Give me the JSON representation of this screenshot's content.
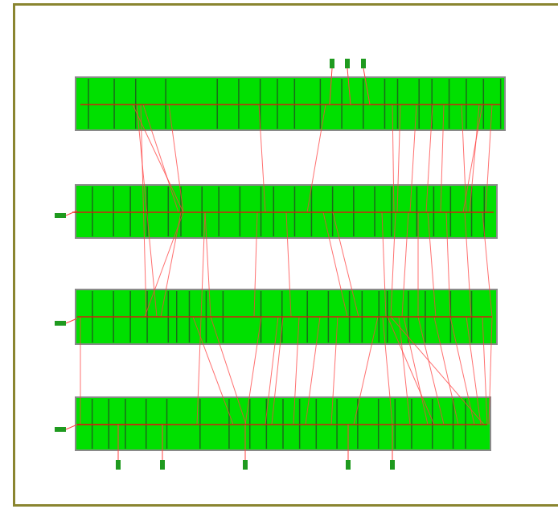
{
  "diagram": {
    "frame_color": "#8a8530",
    "bar_fill": "#00e000",
    "bar_divider": "#1a6b1a",
    "connector_color": "#ff4040",
    "trunk_color": "#d02010",
    "marker_color": "#1f9a1f",
    "bars": [
      {
        "id": "bar-1",
        "ticks": [
          0.03,
          0.09,
          0.14,
          0.21,
          0.33,
          0.38,
          0.43,
          0.47,
          0.51,
          0.57,
          0.62,
          0.67,
          0.72,
          0.75,
          0.8,
          0.83,
          0.87,
          0.91,
          0.95,
          0.99
        ]
      },
      {
        "id": "bar-2",
        "ticks": [
          0.04,
          0.09,
          0.13,
          0.17,
          0.22,
          0.25,
          0.3,
          0.34,
          0.39,
          0.44,
          0.47,
          0.52,
          0.56,
          0.61,
          0.66,
          0.71,
          0.75,
          0.81,
          0.85,
          0.89,
          0.94,
          0.97
        ]
      },
      {
        "id": "bar-3",
        "ticks": [
          0.04,
          0.09,
          0.13,
          0.17,
          0.22,
          0.24,
          0.27,
          0.31,
          0.35,
          0.44,
          0.49,
          0.55,
          0.6,
          0.65,
          0.68,
          0.72,
          0.74,
          0.79,
          0.83,
          0.89,
          0.94
        ]
      },
      {
        "id": "bar-4",
        "ticks": [
          0.04,
          0.08,
          0.12,
          0.17,
          0.22,
          0.3,
          0.37,
          0.42,
          0.46,
          0.5,
          0.54,
          0.58,
          0.63,
          0.68,
          0.73,
          0.77,
          0.81,
          0.86,
          0.91,
          0.94
        ]
      }
    ]
  }
}
